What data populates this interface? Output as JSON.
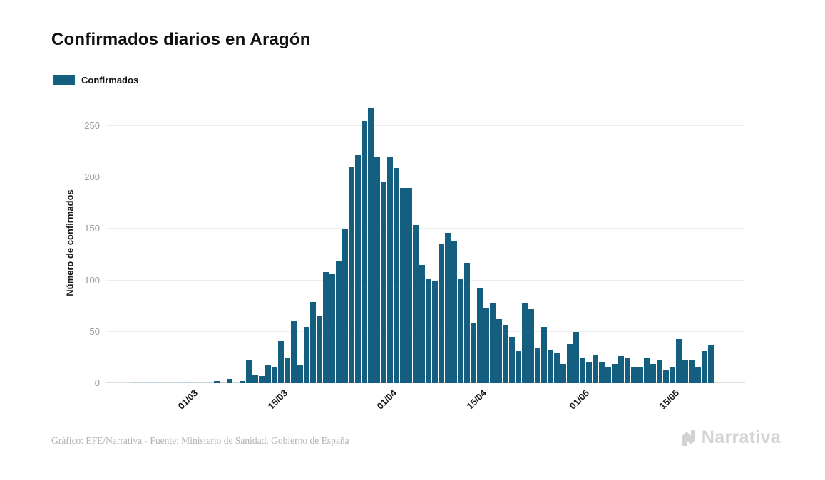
{
  "page": {
    "background": "#ffffff"
  },
  "title": "Confirmados diarios en Aragón",
  "legend": {
    "label": "Confirmados",
    "swatch_color": "#145f7f"
  },
  "y_axis": {
    "title": "Número de confirmados",
    "ticks": [
      0,
      50,
      100,
      150,
      200,
      250
    ]
  },
  "x_axis": {
    "tick_labels": [
      "01/03",
      "15/03",
      "01/04",
      "15/04",
      "01/05",
      "15/05"
    ]
  },
  "footer": {
    "credit": "Gráfico: EFE/Narrativa - Fuente: Ministerio de Sanidad. Gobierno de España",
    "brand": "Narrativa"
  },
  "colors": {
    "bar": "#145f7f",
    "bar_zero": "#c2d2dc",
    "grid": "#ededed",
    "axis": "#dedede",
    "ytick_text": "#999999",
    "xtick_text": "#1b1b1b",
    "title_text": "#111111",
    "footer_text": "#b2b2b6",
    "brand_text": "#d3d3d5"
  },
  "chart_data": {
    "type": "bar",
    "title": "Confirmados diarios en Aragón",
    "series_name": "Confirmados",
    "xlabel": "",
    "ylabel": "Número de confirmados",
    "ylim": [
      0,
      273
    ],
    "yticks": [
      0,
      50,
      100,
      150,
      200,
      250
    ],
    "grid": "on",
    "legend_position": "top-left",
    "xtick_labels": [
      "01/03",
      "15/03",
      "01/04",
      "15/04",
      "01/05",
      "15/05"
    ],
    "x": [
      "21/02",
      "22/02",
      "23/02",
      "24/02",
      "25/02",
      "26/02",
      "27/02",
      "28/02",
      "29/02",
      "01/03",
      "02/03",
      "03/03",
      "04/03",
      "05/03",
      "06/03",
      "07/03",
      "08/03",
      "09/03",
      "10/03",
      "11/03",
      "12/03",
      "13/03",
      "14/03",
      "15/03",
      "16/03",
      "17/03",
      "18/03",
      "19/03",
      "20/03",
      "21/03",
      "22/03",
      "23/03",
      "24/03",
      "25/03",
      "26/03",
      "27/03",
      "28/03",
      "29/03",
      "30/03",
      "31/03",
      "01/04",
      "02/04",
      "03/04",
      "04/04",
      "05/04",
      "06/04",
      "07/04",
      "08/04",
      "09/04",
      "10/04",
      "11/04",
      "12/04",
      "13/04",
      "14/04",
      "15/04",
      "16/04",
      "17/04",
      "18/04",
      "19/04",
      "20/04",
      "21/04",
      "22/04",
      "23/04",
      "24/04",
      "25/04",
      "26/04",
      "27/04",
      "28/04",
      "29/04",
      "30/04",
      "01/05",
      "02/05",
      "03/05",
      "04/05",
      "05/05",
      "06/05",
      "07/05",
      "08/05",
      "09/05",
      "10/05",
      "11/05",
      "12/05",
      "13/05",
      "14/05",
      "15/05",
      "16/05",
      "17/05",
      "18/05",
      "19/05",
      "20/05",
      "21/05"
    ],
    "values": [
      0,
      0,
      0,
      0,
      0,
      0,
      0,
      0,
      0,
      0,
      0,
      0,
      0,
      2,
      0,
      4,
      0,
      2,
      23,
      8,
      7,
      18,
      15,
      41,
      25,
      60,
      18,
      55,
      79,
      65,
      108,
      106,
      119,
      150,
      210,
      222,
      255,
      267,
      220,
      195,
      220,
      209,
      190,
      190,
      154,
      115,
      101,
      100,
      136,
      146,
      138,
      101,
      117,
      58,
      93,
      73,
      78,
      62,
      57,
      45,
      31,
      78,
      72,
      34,
      55,
      32,
      29,
      19,
      38,
      50,
      24,
      20,
      28,
      21,
      16,
      19,
      26,
      24,
      15,
      16,
      25,
      19,
      22,
      13,
      16,
      43,
      23,
      22,
      16,
      31,
      37
    ]
  }
}
